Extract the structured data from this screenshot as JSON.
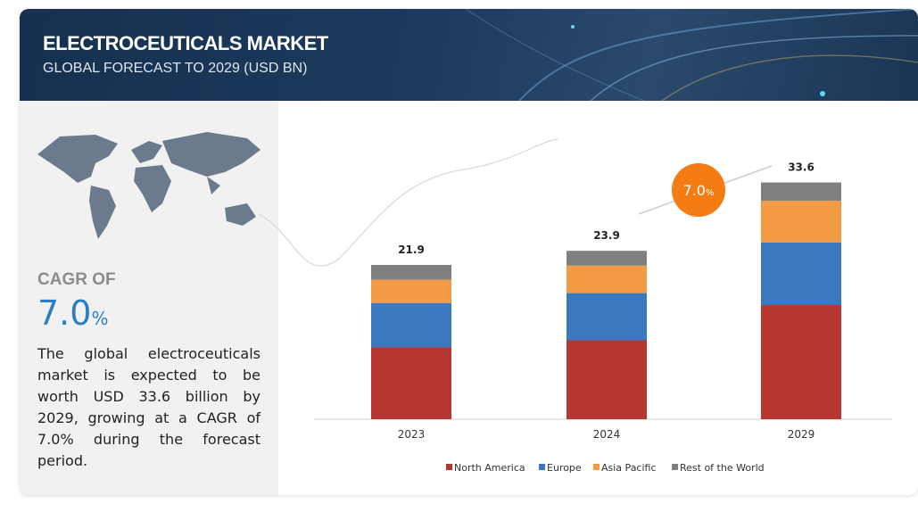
{
  "header": {
    "title": "ELECTROCEUTICALS MARKET",
    "subtitle": "GLOBAL FORECAST TO 2029 (USD BN)"
  },
  "summary": {
    "cagr_label": "CAGR OF",
    "cagr_value": "7.0",
    "cagr_unit": "%",
    "text": "The global electroceuticals market is expected to be worth USD 33.6 billion by 2029, growing at a CAGR of 7.0% during the forecast period."
  },
  "chart_data": {
    "type": "stacked_bar",
    "categories": [
      "2023",
      "2024",
      "2029"
    ],
    "series": [
      {
        "name": "North America",
        "color": "#b5372f",
        "values": [
          10.2,
          11.2,
          16.2
        ]
      },
      {
        "name": "Europe",
        "color": "#3b78c0",
        "values": [
          6.3,
          6.7,
          8.9
        ]
      },
      {
        "name": "Asia Pacific",
        "color": "#f39a45",
        "values": [
          3.3,
          3.9,
          5.9
        ]
      },
      {
        "name": "Rest of the World",
        "color": "#808080",
        "values": [
          2.1,
          2.1,
          2.6
        ]
      }
    ],
    "totals": [
      21.9,
      23.9,
      33.6
    ],
    "badge": {
      "value": "7.0",
      "unit": "%",
      "color": "#f57c12"
    }
  }
}
